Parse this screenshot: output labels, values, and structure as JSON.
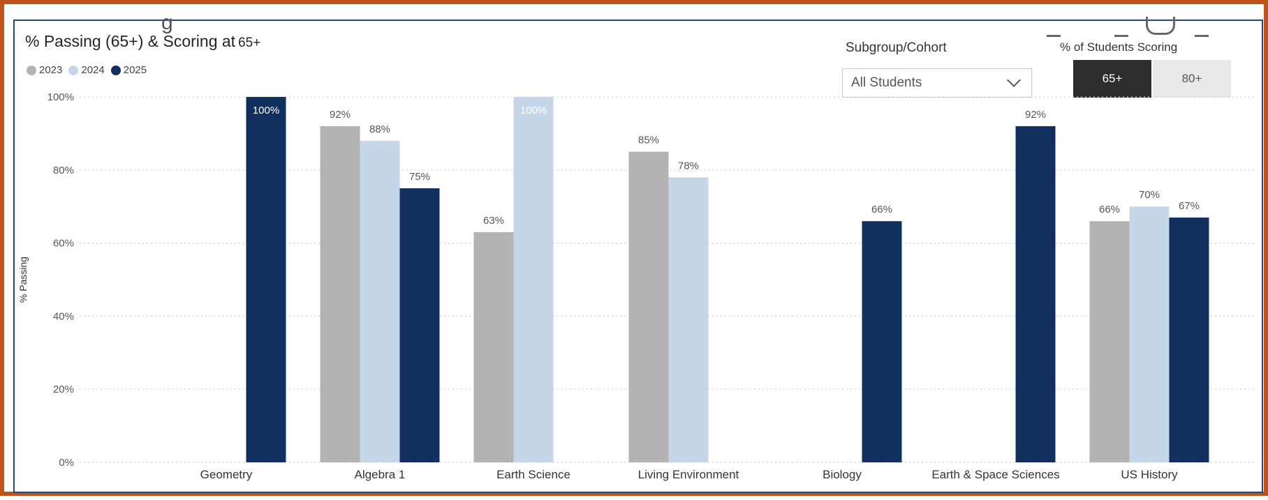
{
  "title": "% Passing (65+) & Scoring at",
  "title_suffix": "65+",
  "header_fragment": "g",
  "legend": [
    {
      "label": "2023",
      "color": "#b3b3b3"
    },
    {
      "label": "2024",
      "color": "#c5d6e8"
    },
    {
      "label": "2025",
      "color": "#12305e"
    }
  ],
  "slicer": {
    "label": "Subgroup/Cohort",
    "selected": "All Students",
    "icon": "chevron-down-icon"
  },
  "toggle": {
    "label": "% of Students Scoring",
    "options": [
      {
        "label": "65+",
        "active": true
      },
      {
        "label": "80+",
        "active": false
      }
    ]
  },
  "chart_data": {
    "type": "bar",
    "ylabel": "% Passing",
    "xlabel": "",
    "ylim": [
      0,
      100
    ],
    "yticks": [
      "0%",
      "20%",
      "40%",
      "60%",
      "80%",
      "100%"
    ],
    "grid": true,
    "legend_position": "top-left",
    "categories": [
      "Geometry",
      "Algebra 1",
      "Earth Science",
      "Living Environment",
      "Biology",
      "Earth & Space Sciences",
      "US History"
    ],
    "series": [
      {
        "name": "2023",
        "color": "#b3b3b3",
        "values": [
          null,
          92,
          63,
          85,
          null,
          null,
          66
        ],
        "labels": [
          null,
          "92%",
          "63%",
          "85%",
          null,
          null,
          "66%"
        ]
      },
      {
        "name": "2024",
        "color": "#c5d6e8",
        "values": [
          null,
          88,
          100,
          78,
          null,
          null,
          70
        ],
        "labels": [
          null,
          "88%",
          "100%",
          "78%",
          null,
          null,
          "70%"
        ]
      },
      {
        "name": "2025",
        "color": "#12305e",
        "values": [
          100,
          75,
          null,
          null,
          66,
          92,
          67
        ],
        "labels": [
          "100%",
          "75%",
          null,
          null,
          "66%",
          "92%",
          "67%"
        ]
      }
    ]
  }
}
